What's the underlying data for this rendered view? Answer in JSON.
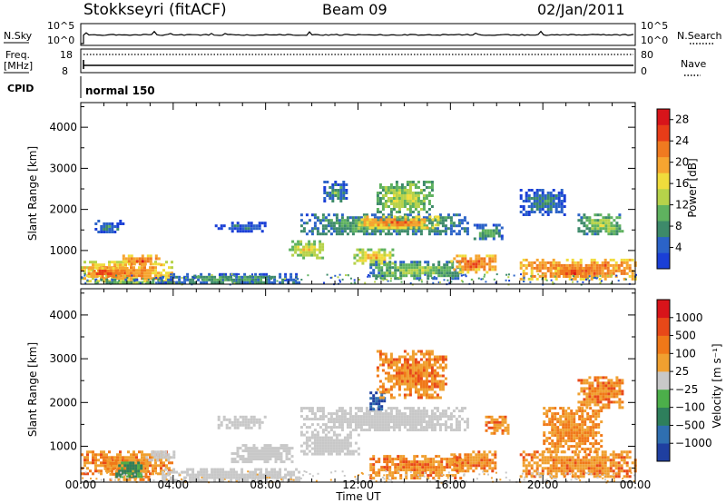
{
  "header": {
    "station": "Stokkseyri (fitACF)",
    "beam": "Beam 09",
    "date": "02/Jan/2011"
  },
  "status_panel": {
    "nsky_label": "N.Sky",
    "nsky_ticks": [
      "10^5",
      "10^0"
    ],
    "nsearch_label": "N.Search",
    "nsearch_ticks": [
      "10^5",
      "10^0"
    ],
    "freq_label": "Freq.",
    "freq_unit": "[MHz]",
    "freq_ticks": [
      "18",
      "8"
    ],
    "nave_label": "Nave",
    "nave_ticks": [
      "80",
      "0"
    ],
    "cpid_label": "CPID",
    "cpid_value": "normal 150"
  },
  "colors": {
    "power_scale": [
      "#1a3fd6",
      "#2b63c8",
      "#3d8a6a",
      "#5fb25f",
      "#b6d24a",
      "#f0dc3c",
      "#f6a530",
      "#f07a20",
      "#e83c18",
      "#d8141a"
    ],
    "velocity_scale": [
      "#1f3fa0",
      "#2f6fb0",
      "#2e7f5c",
      "#4caf4a",
      "#c8c8c8",
      "#f0a030",
      "#f07818",
      "#e84818",
      "#d8141a"
    ],
    "velocity_ground": "#c8c8c8"
  },
  "chart_data": [
    {
      "type": "heatmap",
      "name": "power",
      "ylabel": "Slant Range [km]",
      "yticks": [
        "1000",
        "2000",
        "3000",
        "4000"
      ],
      "ylim": [
        180,
        4600
      ],
      "xlim": [
        0,
        24
      ],
      "colorbar": {
        "label": "Power [dB]",
        "ticks": [
          "4",
          "8",
          "12",
          "16",
          "20",
          "24",
          "28"
        ],
        "range": [
          0,
          30
        ]
      },
      "regions": [
        {
          "t0": 0.0,
          "t1": 3.9,
          "r0": 250,
          "r1": 750,
          "level": 24
        },
        {
          "t0": 0.3,
          "t1": 2.0,
          "r0": 350,
          "r1": 600,
          "level": 28
        },
        {
          "t0": 1.8,
          "t1": 3.4,
          "r0": 650,
          "r1": 900,
          "level": 26
        },
        {
          "t0": 0.6,
          "t1": 1.8,
          "r0": 1450,
          "r1": 1750,
          "level": 8
        },
        {
          "t0": 0.6,
          "t1": 3.5,
          "r0": 200,
          "r1": 320,
          "level": 12
        },
        {
          "t0": 3.5,
          "t1": 9.5,
          "r0": 200,
          "r1": 450,
          "level": 10
        },
        {
          "t0": 5.8,
          "t1": 8.0,
          "r0": 1500,
          "r1": 1700,
          "level": 6
        },
        {
          "t0": 9.0,
          "t1": 10.5,
          "r0": 850,
          "r1": 1250,
          "level": 18
        },
        {
          "t0": 9.5,
          "t1": 16.8,
          "r0": 1400,
          "r1": 1900,
          "level": 12
        },
        {
          "t0": 12.0,
          "t1": 15.5,
          "r0": 1550,
          "r1": 1850,
          "level": 24
        },
        {
          "t0": 12.8,
          "t1": 15.2,
          "r0": 1950,
          "r1": 2700,
          "level": 16
        },
        {
          "t0": 11.8,
          "t1": 13.5,
          "r0": 700,
          "r1": 1050,
          "level": 20
        },
        {
          "t0": 12.5,
          "t1": 16.5,
          "r0": 350,
          "r1": 750,
          "level": 14
        },
        {
          "t0": 16.0,
          "t1": 18.0,
          "r0": 500,
          "r1": 900,
          "level": 26
        },
        {
          "t0": 17.0,
          "t1": 18.2,
          "r0": 1300,
          "r1": 1650,
          "level": 12
        },
        {
          "t0": 19.0,
          "t1": 24.0,
          "r0": 300,
          "r1": 800,
          "level": 26
        },
        {
          "t0": 20.5,
          "t1": 22.0,
          "r0": 350,
          "r1": 600,
          "level": 28
        },
        {
          "t0": 21.5,
          "t1": 23.5,
          "r0": 1400,
          "r1": 1900,
          "level": 14
        },
        {
          "t0": 10.5,
          "t1": 11.5,
          "r0": 2200,
          "r1": 2700,
          "level": 10
        },
        {
          "t0": 19.0,
          "t1": 21.0,
          "r0": 1900,
          "r1": 2500,
          "level": 8
        }
      ]
    },
    {
      "type": "heatmap",
      "name": "velocity",
      "ylabel": "Slant Range [km]",
      "yticks": [
        "1000",
        "2000",
        "3000",
        "4000"
      ],
      "ylim": [
        180,
        4600
      ],
      "xlabel": "Time UT",
      "xticks": [
        "00:00",
        "04:00",
        "08:00",
        "12:00",
        "16:00",
        "20:00",
        "00:00"
      ],
      "xlim": [
        0,
        24
      ],
      "colorbar": {
        "label": "Velocity [m s⁻¹]",
        "ticks": [
          "1000",
          "500",
          "100",
          "25",
          "−25",
          "−100",
          "−500",
          "−1000"
        ]
      },
      "regions": [
        {
          "t0": 0.0,
          "t1": 3.9,
          "r0": 400,
          "r1": 900,
          "level": 1
        },
        {
          "t0": 1.0,
          "t1": 3.0,
          "r0": 250,
          "r1": 700,
          "level": 2
        },
        {
          "t0": 1.5,
          "t1": 2.6,
          "r0": 280,
          "r1": 650,
          "level": 3
        },
        {
          "t0": 2.8,
          "t1": 4.0,
          "r0": 700,
          "r1": 900,
          "level": 0
        },
        {
          "t0": 3.5,
          "t1": 9.5,
          "r0": 220,
          "r1": 500,
          "level": 0
        },
        {
          "t0": 5.8,
          "t1": 8.0,
          "r0": 1450,
          "r1": 1700,
          "level": 0
        },
        {
          "t0": 6.5,
          "t1": 9.2,
          "r0": 650,
          "r1": 1050,
          "level": 0
        },
        {
          "t0": 9.5,
          "t1": 16.8,
          "r0": 1350,
          "r1": 1900,
          "level": 0
        },
        {
          "t0": 9.5,
          "t1": 12.0,
          "r0": 800,
          "r1": 1350,
          "level": 0
        },
        {
          "t0": 12.5,
          "t1": 13.2,
          "r0": 1850,
          "r1": 2250,
          "level": 4
        },
        {
          "t0": 12.8,
          "t1": 15.8,
          "r0": 2100,
          "r1": 3200,
          "level": 1
        },
        {
          "t0": 12.5,
          "t1": 16.5,
          "r0": 300,
          "r1": 800,
          "level": 1
        },
        {
          "t0": 16.0,
          "t1": 18.0,
          "r0": 450,
          "r1": 900,
          "level": 1
        },
        {
          "t0": 17.5,
          "t1": 18.5,
          "r0": 1300,
          "r1": 1700,
          "level": 1
        },
        {
          "t0": 19.0,
          "t1": 24.0,
          "r0": 280,
          "r1": 900,
          "level": 1
        },
        {
          "t0": 20.0,
          "t1": 22.5,
          "r0": 900,
          "r1": 1900,
          "level": 2
        },
        {
          "t0": 21.5,
          "t1": 23.5,
          "r0": 1900,
          "r1": 2600,
          "level": 1
        }
      ]
    }
  ]
}
